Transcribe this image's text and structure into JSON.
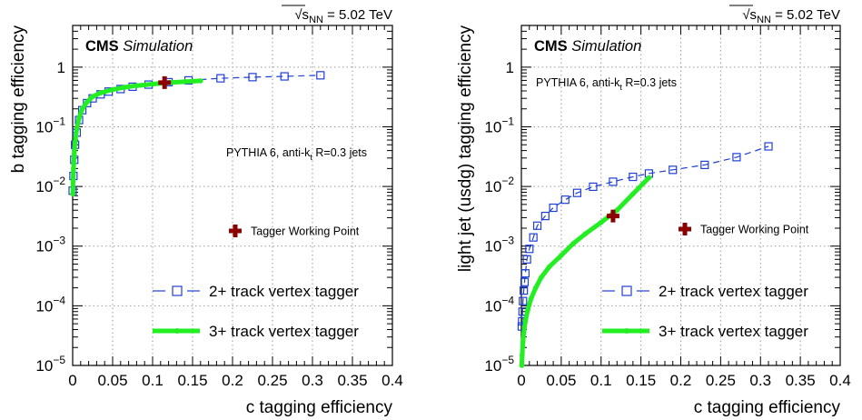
{
  "energy": {
    "prefix": "s",
    "sub": "NN",
    "rest": " = 5.02 TeV"
  },
  "chart_data": [
    {
      "type": "line",
      "xlabel": "c tagging efficiency",
      "ylabel": "b tagging efficiency",
      "xlim": [
        0,
        0.4
      ],
      "ylim": [
        1e-05,
        5
      ],
      "yscale": "log",
      "grid": true,
      "legend_position": "bottom-right",
      "xticks": [
        "0",
        "0.05",
        "0.1",
        "0.15",
        "0.2",
        "0.25",
        "0.3",
        "0.35",
        "0.4"
      ],
      "cms_label": "CMS",
      "sim_label": "Simulation",
      "generator_text": "PYTHIA 6, anti-k",
      "generator_sub": "t",
      "generator_rest": " R=0.3 jets",
      "wp_label": "Tagger Working Point",
      "working_point": {
        "x": 0.115,
        "y": 0.55,
        "color": "#8b0000"
      },
      "series": [
        {
          "name": "2+ track vertex tagger",
          "color": "#1f3fd6",
          "marker": "open-square",
          "style": "dashed",
          "x": [
            0.0,
            0.001,
            0.002,
            0.003,
            0.005,
            0.008,
            0.012,
            0.018,
            0.025,
            0.035,
            0.045,
            0.06,
            0.075,
            0.095,
            0.12,
            0.145,
            0.185,
            0.225,
            0.265,
            0.31
          ],
          "y": [
            0.0085,
            0.015,
            0.028,
            0.05,
            0.08,
            0.13,
            0.19,
            0.25,
            0.3,
            0.35,
            0.39,
            0.43,
            0.47,
            0.51,
            0.56,
            0.6,
            0.65,
            0.68,
            0.7,
            0.73
          ]
        },
        {
          "name": "3+ track vertex tagger",
          "color": "#22ee22",
          "marker": "dot",
          "style": "solid",
          "x": [
            0.0002,
            0.0005,
            0.001,
            0.002,
            0.003,
            0.005,
            0.008,
            0.012,
            0.018,
            0.025,
            0.035,
            0.05,
            0.065,
            0.08,
            0.1,
            0.12,
            0.14,
            0.16
          ],
          "y": [
            0.0075,
            0.012,
            0.02,
            0.035,
            0.055,
            0.09,
            0.14,
            0.2,
            0.26,
            0.32,
            0.37,
            0.42,
            0.46,
            0.49,
            0.52,
            0.55,
            0.57,
            0.59
          ]
        }
      ]
    },
    {
      "type": "line",
      "xlabel": "c tagging efficiency",
      "ylabel": "light jet (usdg) tagging efficiency",
      "xlim": [
        0,
        0.4
      ],
      "ylim": [
        1e-05,
        5
      ],
      "yscale": "log",
      "grid": true,
      "legend_position": "bottom-right",
      "xticks": [
        "0",
        "0.05",
        "0.1",
        "0.15",
        "0.2",
        "0.25",
        "0.3",
        "0.35",
        "0.4"
      ],
      "cms_label": "CMS",
      "sim_label": "Simulation",
      "generator_text": "PYTHIA 6, anti-k",
      "generator_sub": "t",
      "generator_rest": " R=0.3 jets",
      "wp_label": "Tagger Working Point",
      "working_point": {
        "x": 0.115,
        "y": 0.0032,
        "color": "#8b0000"
      },
      "series": [
        {
          "name": "2+ track vertex tagger",
          "color": "#1f3fd6",
          "marker": "open-square",
          "style": "dashed",
          "x": [
            0.0005,
            0.001,
            0.0015,
            0.002,
            0.003,
            0.004,
            0.005,
            0.007,
            0.01,
            0.015,
            0.02,
            0.03,
            0.04,
            0.055,
            0.07,
            0.09,
            0.115,
            0.14,
            0.16,
            0.19,
            0.23,
            0.27,
            0.31
          ],
          "y": [
            4.5e-05,
            5.5e-05,
            8e-05,
            0.00012,
            0.00018,
            0.00025,
            0.00035,
            0.0006,
            0.0009,
            0.0014,
            0.0022,
            0.0032,
            0.0044,
            0.006,
            0.0078,
            0.0099,
            0.012,
            0.0145,
            0.0165,
            0.019,
            0.023,
            0.031,
            0.047
          ]
        },
        {
          "name": "3+ track vertex tagger",
          "color": "#22ee22",
          "marker": "dot",
          "style": "solid",
          "x": [
            0.0005,
            0.001,
            0.002,
            0.003,
            0.005,
            0.008,
            0.012,
            0.018,
            0.025,
            0.035,
            0.05,
            0.065,
            0.08,
            0.1,
            0.12,
            0.14,
            0.16
          ],
          "y": [
            1e-05,
            1.5e-05,
            2.5e-05,
            3.5e-05,
            5.5e-05,
            8.5e-05,
            0.00013,
            0.0002,
            0.0003,
            0.00045,
            0.0007,
            0.0011,
            0.0016,
            0.0025,
            0.004,
            0.0075,
            0.014
          ]
        }
      ]
    }
  ]
}
